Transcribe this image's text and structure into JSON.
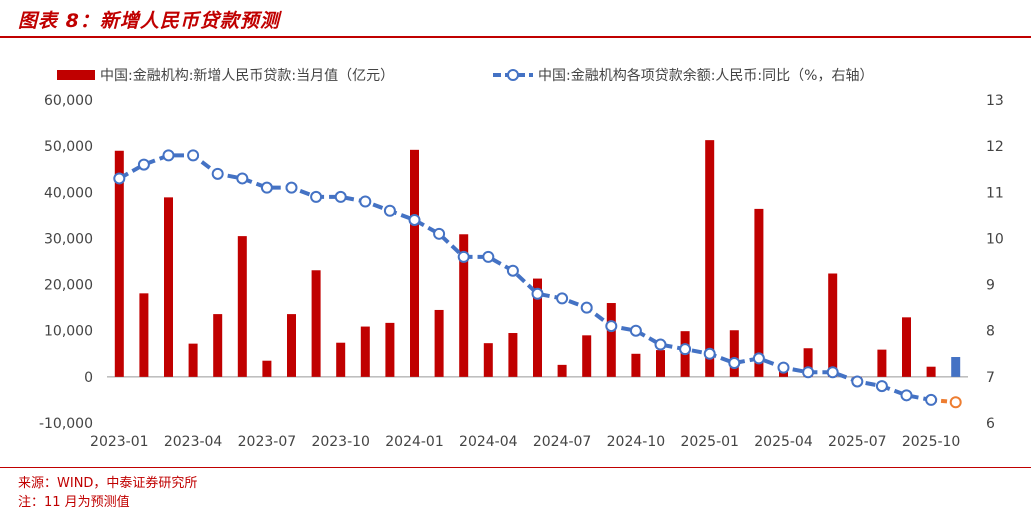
{
  "figure": {
    "title": "图表 8：新增人民币贷款预测",
    "source": "来源：WIND，中泰证券研究所",
    "note": "注：11 月为预测值"
  },
  "chart_data": {
    "type": "bar",
    "categories": [
      "2023-01",
      "2023-02",
      "2023-03",
      "2023-04",
      "2023-05",
      "2023-06",
      "2023-07",
      "2023-08",
      "2023-09",
      "2023-10",
      "2023-11",
      "2023-12",
      "2024-01",
      "2024-02",
      "2024-03",
      "2024-04",
      "2024-05",
      "2024-06",
      "2024-07",
      "2024-08",
      "2024-09",
      "2024-10",
      "2024-11",
      "2024-12",
      "2025-01",
      "2025-02",
      "2025-03",
      "2025-04",
      "2025-05",
      "2025-06",
      "2025-07",
      "2025-08",
      "2025-09",
      "2025-10",
      "2025-11"
    ],
    "x_tick_labels": [
      "2023-01",
      "2023-04",
      "2023-07",
      "2023-10",
      "2024-01",
      "2024-04",
      "2024-07",
      "2024-10",
      "2025-01",
      "2025-04",
      "2025-07",
      "2025-10"
    ],
    "series": [
      {
        "name": "中国:金融机构:新增人民币贷款:当月值（亿元）",
        "type": "bar",
        "axis": "left",
        "color": "#c00000",
        "forecast_color": "#4472c4",
        "values": [
          49000,
          18100,
          38900,
          7200,
          13600,
          30500,
          3500,
          13600,
          23100,
          7400,
          10900,
          11700,
          49200,
          14500,
          30900,
          7300,
          9500,
          21300,
          2600,
          9000,
          16000,
          5000,
          5800,
          9900,
          51300,
          10100,
          36400,
          2800,
          6200,
          22400,
          -500,
          5900,
          12900,
          2200,
          4300
        ]
      },
      {
        "name": "中国:金融机构各项贷款余额:人民币:同比（%，右轴）",
        "type": "line",
        "axis": "right",
        "color": "#4472c4",
        "forecast_color": "#ed7d31",
        "values": [
          11.3,
          11.6,
          11.8,
          11.8,
          11.4,
          11.3,
          11.1,
          11.1,
          10.9,
          10.9,
          10.8,
          10.6,
          10.4,
          10.1,
          9.6,
          9.6,
          9.3,
          8.8,
          8.7,
          8.5,
          8.1,
          8.0,
          7.7,
          7.6,
          7.5,
          7.3,
          7.4,
          7.2,
          7.1,
          7.1,
          6.9,
          6.8,
          6.6,
          6.5,
          6.45
        ]
      }
    ],
    "forecast_category": "2025-11",
    "y_left": {
      "min": -10000,
      "max": 60000,
      "ticks": [
        "-10,000",
        "0",
        "10,000",
        "20,000",
        "30,000",
        "40,000",
        "50,000",
        "60,000"
      ]
    },
    "y_right": {
      "min": 6,
      "max": 13,
      "ticks": [
        "6",
        "7",
        "8",
        "9",
        "10",
        "11",
        "12",
        "13"
      ]
    },
    "legend_position": "top",
    "grid": false
  }
}
